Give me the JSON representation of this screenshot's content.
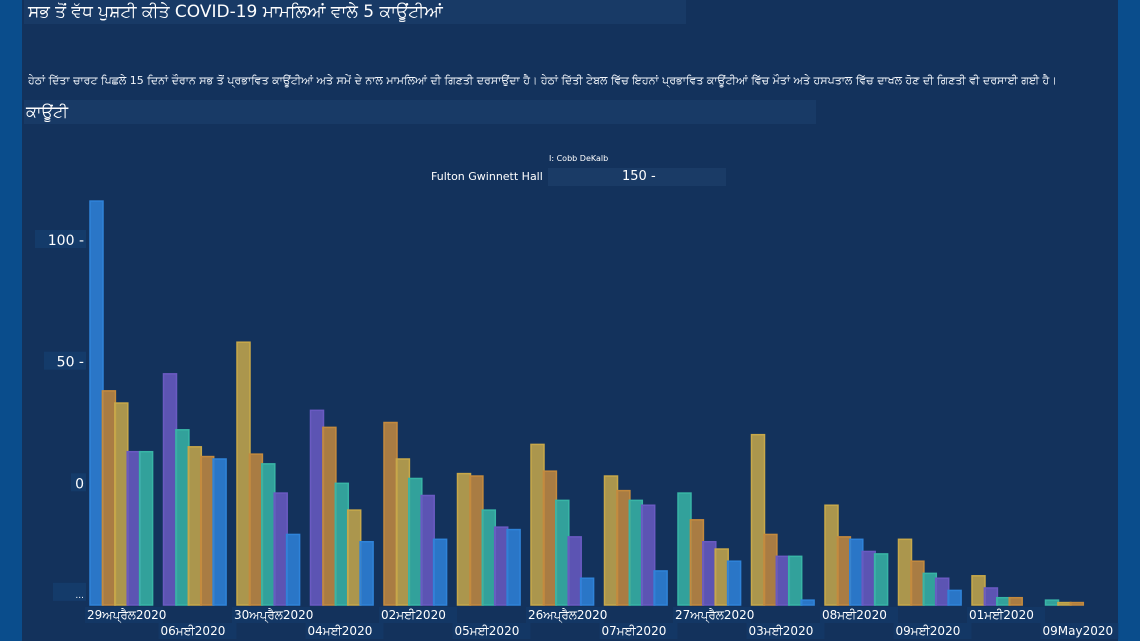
{
  "header": {
    "title": "ਸਭ ਤੋਂ ਵੱਧ ਪੁਸ਼ਟੀ ਕੀਤੇ COVID-19 ਮਾਮਲਿਆਂ ਵਾਲੇ 5 ਕਾਊਂਟੀਆਂ",
    "description": "ਹੇਠਾਂ ਦਿੱਤਾ ਚਾਰਟ ਪਿਛਲੇ 15 ਦਿਨਾਂ ਦੌਰਾਨ ਸਭ ਤੋਂ ਪ੍ਰਭਾਵਿਤ ਕਾਊਂਟੀਆਂ ਅਤੇ ਸਮੇਂ ਦੇ ਨਾਲ ਮਾਮਲਿਆਂ ਦੀ ਗਿਣਤੀ ਦਰਸਾਉਂਦਾ ਹੈ। ਹੇਠਾਂ ਦਿੱਤੀ ਟੇਬਲ ਵਿੱਚ ਇਹਨਾਂ ਪ੍ਰਭਾਵਿਤ ਕਾਊਂਟੀਆਂ ਵਿੱਚ ਮੌਤਾਂ ਅਤੇ ਹਸਪਤਾਲ ਵਿੱਚ ਦਾਖਲ ਹੋਣ ਦੀ ਗਿਣਤੀ ਵੀ ਦਰਸਾਈ ਗਈ ਹੈ।",
    "section_label": "ਕਾਊਂਟੀ"
  },
  "legend": {
    "small_text": "I: Cobb DeKalb",
    "main_text": "Fulton Gwinnett Hall",
    "value_text": "150 -"
  },
  "colors": {
    "Fulton": "#2f83d9",
    "Gwinnett": "#c48a3e",
    "Hall": "#c7a84a",
    "Cobb": "#6a5ac2",
    "DeKalb": "#38b5a6"
  },
  "chart_data": {
    "type": "bar",
    "ylim": [
      -50,
      125
    ],
    "yticks": [
      {
        "value": 100,
        "label": "100 -"
      },
      {
        "value": 50,
        "label": "50 -"
      },
      {
        "value": 0,
        "label": "0"
      },
      {
        "value": -45,
        "label": "..."
      }
    ],
    "groups": [
      {
        "label": "29ਅਪ੍ਰੈਲ2020",
        "row": 0,
        "bars": [
          {
            "s": "Fulton",
            "v": 116
          },
          {
            "s": "Gwinnett",
            "v": 38
          },
          {
            "s": "Hall",
            "v": 33
          },
          {
            "s": "Cobb",
            "v": 13
          },
          {
            "s": "DeKalb",
            "v": 13
          }
        ]
      },
      {
        "label": "06ਮਈ2020",
        "row": 1,
        "bars": [
          {
            "s": "Cobb",
            "v": 45
          },
          {
            "s": "DeKalb",
            "v": 22
          },
          {
            "s": "Hall",
            "v": 15
          },
          {
            "s": "Gwinnett",
            "v": 11
          },
          {
            "s": "Fulton",
            "v": 10
          }
        ]
      },
      {
        "label": "30ਅਪ੍ਰੈਲ2020",
        "row": 0,
        "bars": [
          {
            "s": "Hall",
            "v": 58
          },
          {
            "s": "Gwinnett",
            "v": 12
          },
          {
            "s": "DeKalb",
            "v": 8
          },
          {
            "s": "Cobb",
            "v": -4
          },
          {
            "s": "Fulton",
            "v": -21
          }
        ]
      },
      {
        "label": "04ਮਈ2020",
        "row": 1,
        "bars": [
          {
            "s": "Cobb",
            "v": 30
          },
          {
            "s": "Gwinnett",
            "v": 23
          },
          {
            "s": "DeKalb",
            "v": 0
          },
          {
            "s": "Hall",
            "v": -11
          },
          {
            "s": "Fulton",
            "v": -24
          }
        ]
      },
      {
        "label": "02ਮਈ2020",
        "row": 0,
        "bars": [
          {
            "s": "Gwinnett",
            "v": 25
          },
          {
            "s": "Hall",
            "v": 10
          },
          {
            "s": "DeKalb",
            "v": 2
          },
          {
            "s": "Cobb",
            "v": -5
          },
          {
            "s": "Fulton",
            "v": -23
          }
        ]
      },
      {
        "label": "05ਮਈ2020",
        "row": 1,
        "bars": [
          {
            "s": "Hall",
            "v": 4
          },
          {
            "s": "Gwinnett",
            "v": 3
          },
          {
            "s": "DeKalb",
            "v": -11
          },
          {
            "s": "Cobb",
            "v": -18
          },
          {
            "s": "Fulton",
            "v": -19
          }
        ]
      },
      {
        "label": "26ਅਪ੍ਰੈਲ2020",
        "row": 0,
        "bars": [
          {
            "s": "Hall",
            "v": 16
          },
          {
            "s": "Gwinnett",
            "v": 5
          },
          {
            "s": "DeKalb",
            "v": -7
          },
          {
            "s": "Cobb",
            "v": -22
          },
          {
            "s": "Fulton",
            "v": -39
          }
        ]
      },
      {
        "label": "07ਮਈ2020",
        "row": 1,
        "bars": [
          {
            "s": "Hall",
            "v": 3
          },
          {
            "s": "Gwinnett",
            "v": -3
          },
          {
            "s": "DeKalb",
            "v": -7
          },
          {
            "s": "Cobb",
            "v": -9
          },
          {
            "s": "Fulton",
            "v": -36
          }
        ]
      },
      {
        "label": "27ਅਪ੍ਰੈਲ2020",
        "row": 0,
        "bars": [
          {
            "s": "DeKalb",
            "v": -4
          },
          {
            "s": "Gwinnett",
            "v": -15
          },
          {
            "s": "Cobb",
            "v": -24
          },
          {
            "s": "Hall",
            "v": -27
          },
          {
            "s": "Fulton",
            "v": -32
          }
        ]
      },
      {
        "label": "03ਮਈ2020",
        "row": 1,
        "bars": [
          {
            "s": "Hall",
            "v": 20
          },
          {
            "s": "Gwinnett",
            "v": -21
          },
          {
            "s": "Cobb",
            "v": -30
          },
          {
            "s": "DeKalb",
            "v": -30
          },
          {
            "s": "Fulton",
            "v": -48
          }
        ]
      },
      {
        "label": "08ਮਈ2020",
        "row": 0,
        "bars": [
          {
            "s": "Hall",
            "v": -9
          },
          {
            "s": "Gwinnett",
            "v": -22
          },
          {
            "s": "Fulton",
            "v": -23
          },
          {
            "s": "Cobb",
            "v": -28
          },
          {
            "s": "DeKalb",
            "v": -29
          }
        ]
      },
      {
        "label": "09ਮਈ2020",
        "row": 1,
        "bars": [
          {
            "s": "Hall",
            "v": -23
          },
          {
            "s": "Gwinnett",
            "v": -32
          },
          {
            "s": "DeKalb",
            "v": -37
          },
          {
            "s": "Cobb",
            "v": -39
          },
          {
            "s": "Fulton",
            "v": -44
          }
        ]
      },
      {
        "label": "01ਮਈ2020",
        "row": 0,
        "bars": [
          {
            "s": "Hall",
            "v": -38
          },
          {
            "s": "Cobb",
            "v": -43
          },
          {
            "s": "DeKalb",
            "v": -47
          },
          {
            "s": "Gwinnett",
            "v": -47
          }
        ]
      },
      {
        "label": "09May2020",
        "row": 1,
        "faded": true,
        "bars": [
          {
            "s": "DeKalb",
            "v": -48
          },
          {
            "s": "Hall",
            "v": -49
          },
          {
            "s": "Gwinnett",
            "v": -49
          }
        ]
      }
    ]
  }
}
